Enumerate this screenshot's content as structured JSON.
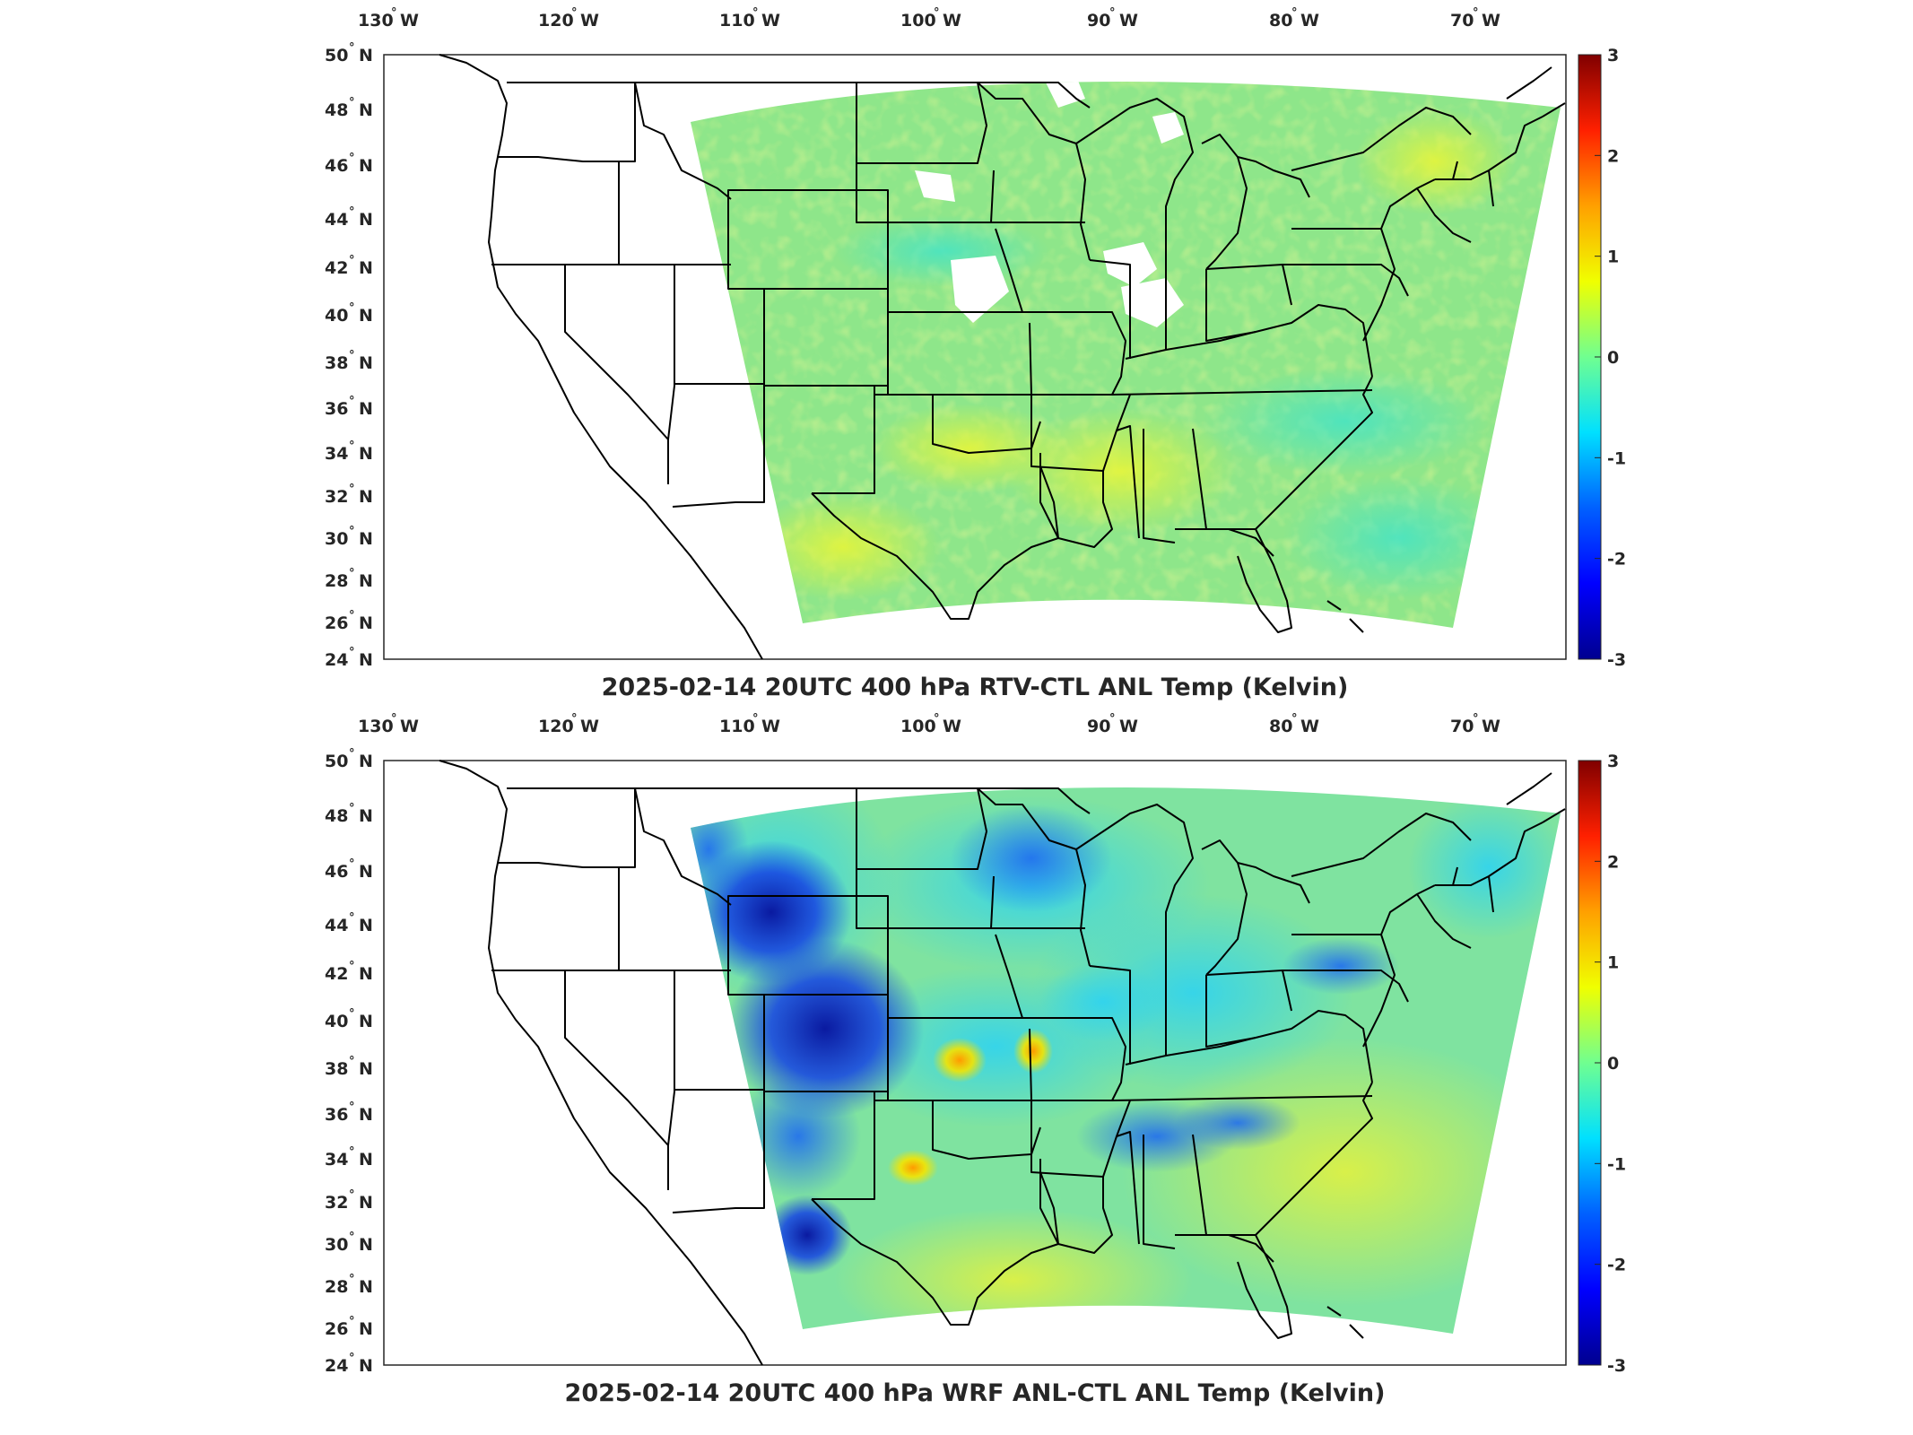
{
  "panels": [
    {
      "title": "2025-02-14 20UTC 400 hPa RTV-CTL ANL Temp (Kelvin)",
      "field_type": "near-zero",
      "lon_ticks": [
        "130",
        "120",
        "110",
        "100",
        "90",
        "80",
        "70"
      ],
      "lat_ticks": [
        "50",
        "48",
        "46",
        "44",
        "42",
        "40",
        "38",
        "36",
        "34",
        "32",
        "30",
        "28",
        "26",
        "24"
      ],
      "lon_suffix": "W",
      "lat_suffix": "N",
      "colorbar_ticks": [
        "3",
        "2",
        "1",
        "0",
        "-1",
        "-2",
        "-3"
      ]
    },
    {
      "title": "2025-02-14 20UTC 400 hPa WRF ANL-CTL ANL Temp (Kelvin)",
      "field_type": "negative-anomaly",
      "lon_ticks": [
        "130",
        "120",
        "110",
        "100",
        "90",
        "80",
        "70"
      ],
      "lat_ticks": [
        "50",
        "48",
        "46",
        "44",
        "42",
        "40",
        "38",
        "36",
        "34",
        "32",
        "30",
        "28",
        "26",
        "24"
      ],
      "lon_suffix": "W",
      "lat_suffix": "N",
      "colorbar_ticks": [
        "3",
        "2",
        "1",
        "0",
        "-1",
        "-2",
        "-3"
      ]
    }
  ],
  "colormap": [
    "#00008f",
    "#0000ff",
    "#0080ff",
    "#00ffff",
    "#80ff80",
    "#ffff00",
    "#ff8000",
    "#ff0000",
    "#800000"
  ],
  "colorbar_range": [
    -3,
    3
  ]
}
